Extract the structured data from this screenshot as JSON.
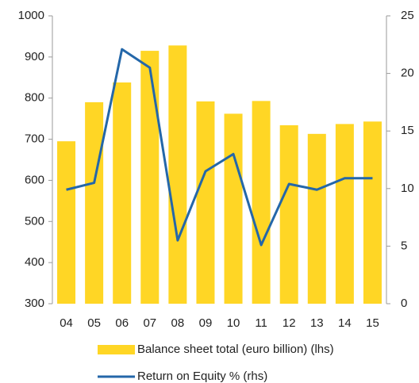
{
  "chart_data": {
    "type": "bar_line",
    "categories": [
      "04",
      "05",
      "06",
      "07",
      "08",
      "09",
      "10",
      "11",
      "12",
      "13",
      "14",
      "15"
    ],
    "series": [
      {
        "name": "Balance sheet total (euro billion) (lhs)",
        "type": "bar",
        "color": "#ffd625",
        "values": [
          695,
          790,
          838,
          915,
          928,
          792,
          762,
          793,
          734,
          713,
          737,
          743
        ]
      },
      {
        "name": "Return on Equity % (rhs)",
        "type": "line",
        "axis": "y2",
        "color": "#2467a9",
        "values": [
          9.9,
          10.5,
          22.1,
          20.5,
          5.5,
          11.5,
          13.0,
          5.1,
          10.4,
          9.9,
          10.9,
          10.9
        ]
      }
    ],
    "ylim": [
      300,
      1000
    ],
    "yticks": [
      300,
      400,
      500,
      600,
      700,
      800,
      900,
      1000
    ],
    "y2lim": [
      0,
      25
    ],
    "y2ticks": [
      0,
      5,
      10,
      15,
      20,
      25
    ],
    "grid": false,
    "legend": "bottom"
  }
}
